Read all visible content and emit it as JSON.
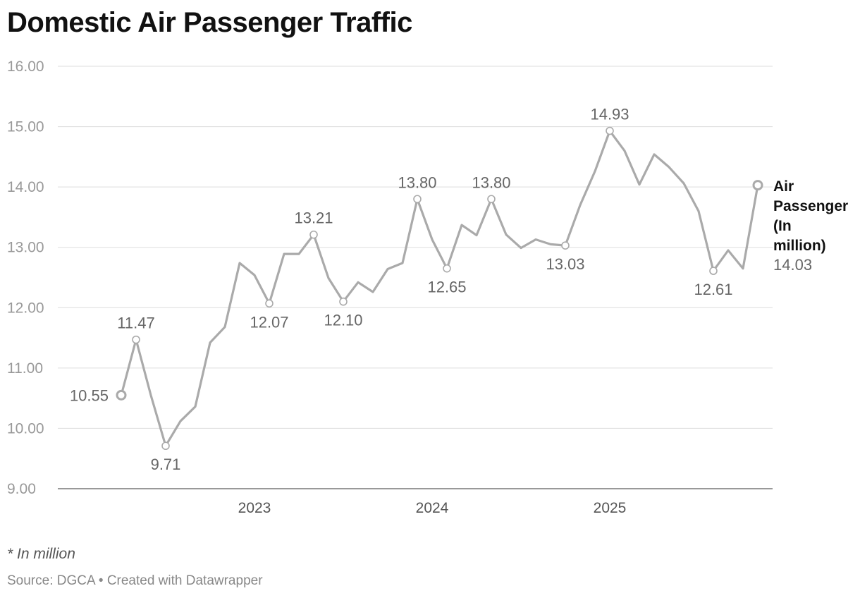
{
  "title": "Domestic Air Passenger Traffic",
  "footnote": "* In million",
  "source": "Source: DGCA • Created with Datawrapper",
  "colors": {
    "line": "#aaaaaa",
    "grid": "#dddddd",
    "marker_fill": "#ffffff",
    "axis_text": "#999999"
  },
  "chart_data": {
    "type": "line",
    "title": "Domestic Air Passenger Traffic",
    "xlabel": "",
    "ylabel": "",
    "ylim": [
      9,
      16
    ],
    "yticks": [
      "9.00",
      "10.00",
      "11.00",
      "12.00",
      "13.00",
      "14.00",
      "15.00",
      "16.00"
    ],
    "xticks": [
      {
        "label": "2023",
        "index": 9
      },
      {
        "label": "2024",
        "index": 21
      },
      {
        "label": "2025",
        "index": 33
      }
    ],
    "grid": true,
    "series": [
      {
        "name": "Air Passenger (In million)",
        "name_lines": [
          "Air",
          "Passenger",
          "(In",
          "million)"
        ],
        "end_value_label": "14.03",
        "values": [
          10.55,
          11.47,
          10.55,
          9.71,
          10.12,
          10.36,
          11.42,
          11.68,
          12.74,
          12.54,
          12.07,
          12.89,
          12.89,
          13.21,
          12.49,
          12.1,
          12.42,
          12.26,
          12.64,
          12.74,
          13.8,
          13.13,
          12.65,
          13.37,
          13.2,
          13.8,
          13.21,
          12.99,
          13.13,
          13.05,
          13.03,
          13.7,
          14.26,
          14.93,
          14.6,
          14.04,
          14.54,
          14.33,
          14.06,
          13.6,
          12.61,
          12.95,
          12.65,
          14.03
        ]
      }
    ],
    "annotations": [
      {
        "index": 0,
        "text": "10.55",
        "position": "left"
      },
      {
        "index": 1,
        "text": "11.47",
        "position": "above"
      },
      {
        "index": 3,
        "text": "9.71",
        "position": "below"
      },
      {
        "index": 10,
        "text": "12.07",
        "position": "below"
      },
      {
        "index": 13,
        "text": "13.21",
        "position": "above"
      },
      {
        "index": 15,
        "text": "12.10",
        "position": "below"
      },
      {
        "index": 20,
        "text": "13.80",
        "position": "above"
      },
      {
        "index": 22,
        "text": "12.65",
        "position": "below"
      },
      {
        "index": 25,
        "text": "13.80",
        "position": "above"
      },
      {
        "index": 30,
        "text": "13.03",
        "position": "below"
      },
      {
        "index": 33,
        "text": "14.93",
        "position": "above"
      },
      {
        "index": 40,
        "text": "12.61",
        "position": "below"
      }
    ]
  }
}
